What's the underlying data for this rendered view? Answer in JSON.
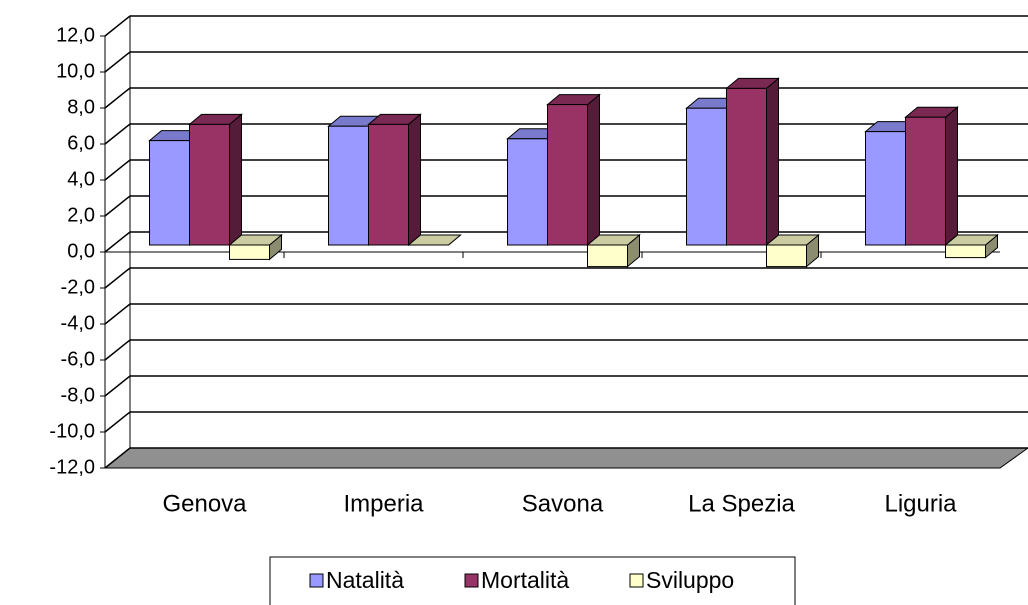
{
  "chart_data": {
    "type": "bar3d",
    "categories": [
      "Genova",
      "Imperia",
      "Savona",
      "La Spezia",
      "Liguria"
    ],
    "series": [
      {
        "name": "Natalità",
        "color": "#9999ff",
        "values": [
          5.8,
          6.6,
          5.9,
          7.6,
          6.3
        ]
      },
      {
        "name": "Mortalità",
        "color": "#993366",
        "values": [
          6.7,
          6.7,
          7.8,
          8.7,
          7.1
        ]
      },
      {
        "name": "Sviluppo",
        "color": "#ffffcc",
        "values": [
          -0.8,
          0.0,
          -1.2,
          -1.2,
          -0.7
        ]
      }
    ],
    "ylim": [
      -12,
      12
    ],
    "yticks": [
      {
        "value": -12,
        "label": "-12,0"
      },
      {
        "value": -10,
        "label": "-10,0"
      },
      {
        "value": -8,
        "label": "-8,0"
      },
      {
        "value": -6,
        "label": "-6,0"
      },
      {
        "value": -4,
        "label": "-4,0"
      },
      {
        "value": -2,
        "label": "-2,0"
      },
      {
        "value": 0,
        "label": "0,0"
      },
      {
        "value": 2,
        "label": "2,0"
      },
      {
        "value": 4,
        "label": "4,0"
      },
      {
        "value": 6,
        "label": "6,0"
      },
      {
        "value": 8,
        "label": "8,0"
      },
      {
        "value": 10,
        "label": "10,0"
      },
      {
        "value": 12,
        "label": "12,0"
      }
    ],
    "grid": true,
    "legend": "bottom"
  }
}
